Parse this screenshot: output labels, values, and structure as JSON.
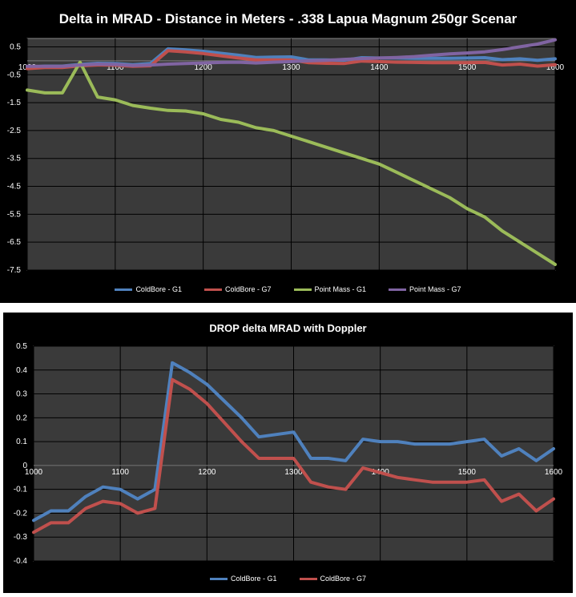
{
  "chart_data": [
    {
      "type": "line",
      "title": "Delta in MRAD - Distance in Meters - .338 Lapua Magnum 250gr Scenar",
      "xlabel": "",
      "ylabel": "",
      "xlim": [
        1000,
        1600
      ],
      "ylim": [
        -7.5,
        0.8
      ],
      "x_ticks": [
        1000,
        1100,
        1200,
        1300,
        1400,
        1500,
        1600
      ],
      "y_ticks": [
        0.5,
        -0.5,
        -1.5,
        -2.5,
        -3.5,
        -4.5,
        -5.5,
        -6.5,
        -7.5
      ],
      "grid": true,
      "legend_position": "bottom",
      "x": [
        1000,
        1020,
        1040,
        1060,
        1080,
        1100,
        1120,
        1140,
        1160,
        1180,
        1200,
        1220,
        1240,
        1260,
        1280,
        1300,
        1320,
        1340,
        1360,
        1380,
        1400,
        1420,
        1440,
        1460,
        1480,
        1500,
        1520,
        1540,
        1560,
        1580,
        1600
      ],
      "series": [
        {
          "name": "ColdBore - G1",
          "color": "#4f81bd",
          "values": [
            -0.23,
            -0.19,
            -0.19,
            -0.13,
            -0.09,
            -0.1,
            -0.14,
            -0.1,
            0.43,
            0.39,
            0.34,
            0.27,
            0.2,
            0.12,
            0.13,
            0.14,
            0.03,
            0.03,
            0.02,
            0.11,
            0.1,
            0.1,
            0.09,
            0.09,
            0.09,
            0.1,
            0.11,
            0.04,
            0.07,
            0.02,
            0.07
          ]
        },
        {
          "name": "ColdBore - G7",
          "color": "#c0504d",
          "values": [
            -0.28,
            -0.24,
            -0.24,
            -0.18,
            -0.15,
            -0.16,
            -0.2,
            -0.18,
            0.36,
            0.32,
            0.26,
            0.18,
            0.1,
            0.03,
            0.03,
            0.03,
            -0.07,
            -0.09,
            -0.1,
            -0.01,
            -0.03,
            -0.05,
            -0.06,
            -0.07,
            -0.07,
            -0.07,
            -0.06,
            -0.15,
            -0.12,
            -0.19,
            -0.14
          ]
        },
        {
          "name": "Point Mass - G1",
          "color": "#9bbb59",
          "values": [
            -1.05,
            -1.15,
            -1.15,
            -0.05,
            -1.3,
            -1.4,
            -1.6,
            -1.7,
            -1.78,
            -1.8,
            -1.9,
            -2.1,
            -2.2,
            -2.4,
            -2.5,
            -2.7,
            -2.9,
            -3.1,
            -3.3,
            -3.5,
            -3.7,
            -4.0,
            -4.3,
            -4.6,
            -4.9,
            -5.3,
            -5.6,
            -6.1,
            -6.5,
            -6.9,
            -7.3
          ]
        },
        {
          "name": "Point Mass - G7",
          "color": "#8064a2",
          "values": [
            -0.2,
            -0.2,
            -0.2,
            -0.15,
            -0.12,
            -0.13,
            -0.17,
            -0.15,
            -0.12,
            -0.1,
            -0.08,
            -0.06,
            -0.05,
            -0.08,
            -0.05,
            -0.03,
            0.0,
            0.02,
            0.05,
            0.08,
            0.1,
            0.12,
            0.15,
            0.2,
            0.25,
            0.28,
            0.32,
            0.4,
            0.5,
            0.6,
            0.75
          ]
        }
      ]
    },
    {
      "type": "line",
      "title": "DROP delta MRAD with Doppler",
      "xlabel": "",
      "ylabel": "",
      "xlim": [
        1000,
        1600
      ],
      "ylim": [
        -0.4,
        0.5
      ],
      "x_ticks": [
        1000,
        1100,
        1200,
        1300,
        1400,
        1500,
        1600
      ],
      "y_ticks": [
        0.5,
        0.4,
        0.3,
        0.2,
        0.1,
        0,
        -0.1,
        -0.2,
        -0.3,
        -0.4
      ],
      "grid": true,
      "legend_position": "bottom",
      "x": [
        1000,
        1020,
        1040,
        1060,
        1080,
        1100,
        1120,
        1140,
        1160,
        1180,
        1200,
        1220,
        1240,
        1260,
        1280,
        1300,
        1320,
        1340,
        1360,
        1380,
        1400,
        1420,
        1440,
        1460,
        1480,
        1500,
        1520,
        1540,
        1560,
        1580,
        1600
      ],
      "series": [
        {
          "name": "ColdBore - G1",
          "color": "#4f81bd",
          "values": [
            -0.23,
            -0.19,
            -0.19,
            -0.13,
            -0.09,
            -0.1,
            -0.14,
            -0.1,
            0.43,
            0.39,
            0.34,
            0.27,
            0.2,
            0.12,
            0.13,
            0.14,
            0.03,
            0.03,
            0.02,
            0.11,
            0.1,
            0.1,
            0.09,
            0.09,
            0.09,
            0.1,
            0.11,
            0.04,
            0.07,
            0.02,
            0.07
          ]
        },
        {
          "name": "ColdBore - G7",
          "color": "#c0504d",
          "values": [
            -0.28,
            -0.24,
            -0.24,
            -0.18,
            -0.15,
            -0.16,
            -0.2,
            -0.18,
            0.36,
            0.32,
            0.26,
            0.18,
            0.1,
            0.03,
            0.03,
            0.03,
            -0.07,
            -0.09,
            -0.1,
            -0.01,
            -0.03,
            -0.05,
            -0.06,
            -0.07,
            -0.07,
            -0.07,
            -0.06,
            -0.15,
            -0.12,
            -0.19,
            -0.14
          ]
        }
      ]
    }
  ]
}
